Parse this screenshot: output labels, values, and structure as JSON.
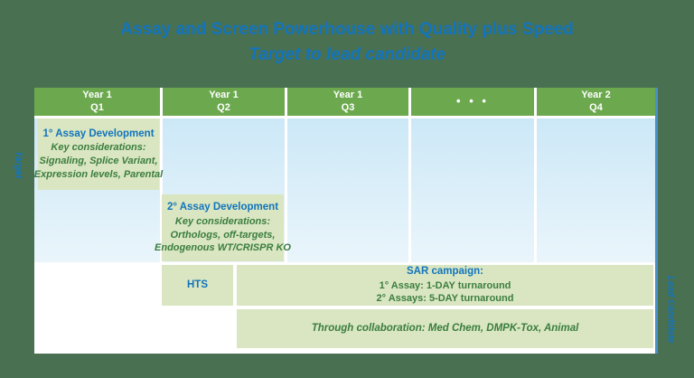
{
  "title": "Assay and Screen Powerhouse with Quality plus Speed",
  "subtitle": "Target to lead candidate",
  "side_labels": {
    "left": "Target",
    "right": "Lead Candidate"
  },
  "timeline": {
    "headers": [
      {
        "line1": "Year 1",
        "line2": "Q1"
      },
      {
        "line1": "Year 1",
        "line2": "Q2"
      },
      {
        "line1": "Year 1",
        "line2": "Q3"
      },
      {
        "line1": "• • •",
        "line2": ""
      },
      {
        "line1": "Year 2",
        "line2": "Q4"
      }
    ],
    "cells": {
      "primary_assay": {
        "title": "1° Assay Development",
        "line1": "Key considerations:",
        "line2": "Signaling, Splice Variant,",
        "line3": "Expression levels, Parental"
      },
      "secondary_assay": {
        "title": "2° Assay Development",
        "line1": "Key considerations:",
        "line2": "Orthologs, off-targets,",
        "line3": "Endogenous WT/CRISPR KO"
      },
      "hts": {
        "title": "HTS"
      },
      "sar": {
        "title": "SAR campaign:",
        "line1": "1° Assay: 1-DAY turnaround",
        "line2": "2° Assays: 5-DAY turnaround"
      },
      "collaboration": {
        "line1": "Through collaboration: Med Chem, DMPK-Tox, Animal"
      }
    }
  },
  "colors": {
    "background": "#4a7052",
    "header_green": "#6ca94e",
    "cell_green": "#d9e6c1",
    "blue_band_top": "#cce8f7",
    "blue_band_bottom": "#eaf5fb",
    "accent_blue_text": "#1274bc",
    "dark_green_text": "#3b7d3f",
    "right_border_blue": "#4a90c8"
  }
}
